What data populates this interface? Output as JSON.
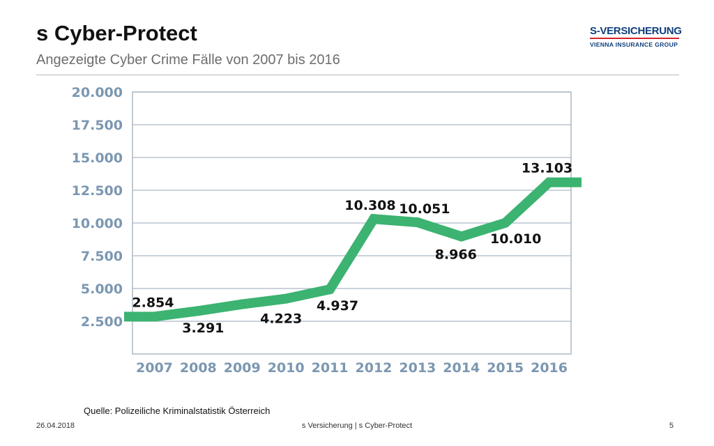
{
  "header": {
    "title": "s Cyber-Protect",
    "subtitle": "Angezeigte Cyber Crime Fälle von 2007 bis 2016"
  },
  "logo": {
    "name": "S-VERSICHERUNG",
    "tagline": "VIENNA INSURANCE GROUP"
  },
  "colors": {
    "line": "#3cb371",
    "axis_text": "#7b97b1",
    "grid": "#aab8c6",
    "brand_blue": "#0f3f7c",
    "brand_red": "#d8232a"
  },
  "chart_data": {
    "type": "line",
    "title": "",
    "xlabel": "",
    "ylabel": "",
    "categories": [
      "2007",
      "2008",
      "2009",
      "2010",
      "2011",
      "2012",
      "2013",
      "2014",
      "2015",
      "2016"
    ],
    "y_ticks": [
      "2.500",
      "5.000",
      "7.500",
      "10.000",
      "12.500",
      "15.000",
      "17.500",
      "20.000"
    ],
    "ylim": [
      0,
      20000
    ],
    "grid": true,
    "series": [
      {
        "values": [
          2854,
          3291,
          3800,
          4223,
          4937,
          10308,
          10051,
          8966,
          10010,
          13103
        ],
        "labels": [
          "2.854",
          "3.291",
          "",
          "4.223",
          "4.937",
          "10.308",
          "10.051",
          "8.966",
          "10.010",
          "13.103"
        ]
      }
    ]
  },
  "source": "Quelle:  Polizeiliche Kriminalstatistik Österreich",
  "footer": {
    "date": "26.04.2018",
    "center": "s Versicherung | s Cyber-Protect",
    "page": "5"
  }
}
